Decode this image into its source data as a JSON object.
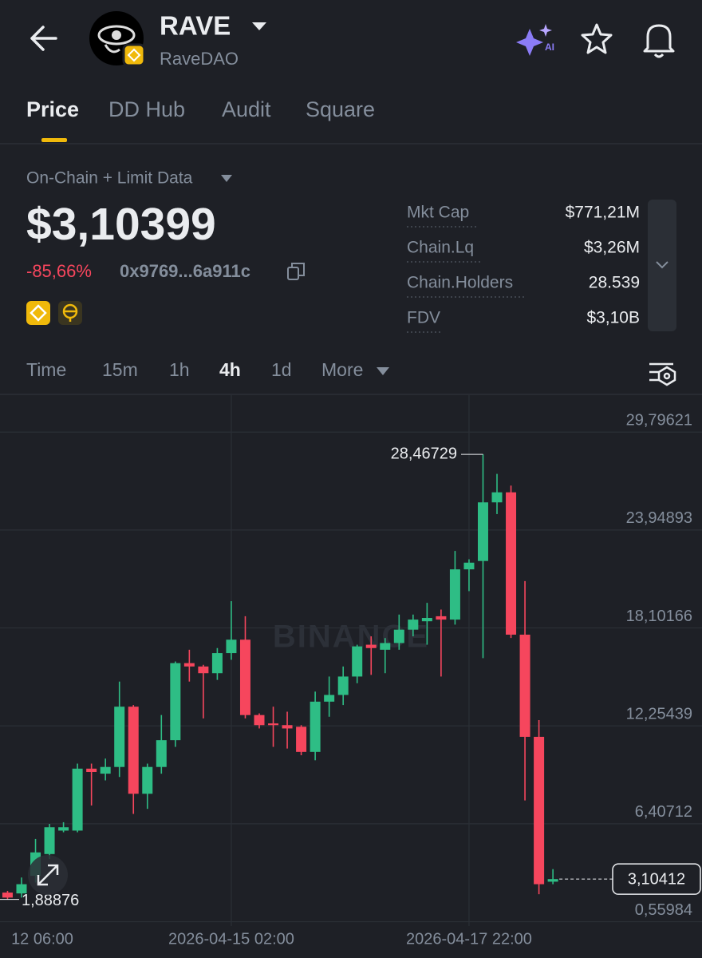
{
  "header": {
    "title": "RAVE",
    "subtitle": "RaveDAO"
  },
  "tabs": {
    "items": [
      "Price",
      "DD Hub",
      "Audit",
      "Square"
    ],
    "active": 0
  },
  "quote": {
    "source": "On-Chain + Limit Data",
    "price": "$3,10399",
    "change": "-85,66%",
    "address": "0x9769...6a911c"
  },
  "stats": [
    {
      "label": "Mkt Cap",
      "value": "$771,21M"
    },
    {
      "label": "Chain.Lq",
      "value": "$3,26M"
    },
    {
      "label": "Chain.Holders",
      "value": "28.539"
    },
    {
      "label": "FDV",
      "value": "$3,10B"
    }
  ],
  "intervals": {
    "items": [
      "Time",
      "15m",
      "1h",
      "4h",
      "1d",
      "More"
    ],
    "active": 3
  },
  "chart_data": {
    "type": "candlestick",
    "watermark": "BINANCE",
    "up_color": "#2ebd85",
    "down_color": "#f6465d",
    "open": [
      2.3,
      2.25,
      3.3,
      4.6,
      6.0,
      6.0,
      9.7,
      9.4,
      9.8,
      13.4,
      8.2,
      9.8,
      11.4,
      16.0,
      15.8,
      15.4,
      16.6,
      17.4,
      12.9,
      12.4,
      12.3,
      12.2,
      10.7,
      13.7,
      14.1,
      15.2,
      17.1,
      16.8,
      17.2,
      18.0,
      18.5,
      18.8,
      18.6,
      21.6,
      22.1,
      25.6,
      26.2,
      17.7,
      11.6,
      2.95
    ],
    "high": [
      2.4,
      3.2,
      5.5,
      6.4,
      6.5,
      10.0,
      10.0,
      10.3,
      14.9,
      13.5,
      10.0,
      12.9,
      16.1,
      16.8,
      15.9,
      16.9,
      19.7,
      18.8,
      13.0,
      13.4,
      13.1,
      12.3,
      14.3,
      15.2,
      15.8,
      17.1,
      17.6,
      17.5,
      18.9,
      18.9,
      19.6,
      19.2,
      22.7,
      22.2,
      28.46729,
      27.3,
      26.6,
      20.9,
      12.6,
      3.7
    ],
    "low": [
      1.88876,
      2.0,
      2.9,
      4.3,
      5.9,
      5.9,
      7.5,
      9.0,
      9.2,
      7.0,
      7.3,
      9.4,
      11.0,
      14.9,
      12.7,
      15.0,
      16.2,
      12.7,
      12.1,
      11.0,
      10.9,
      10.5,
      10.2,
      12.8,
      13.5,
      14.8,
      15.3,
      15.4,
      16.8,
      17.6,
      17.1,
      15.2,
      18.3,
      20.3,
      16.3,
      24.9,
      17.5,
      7.8,
      2.2,
      2.8
    ],
    "close": [
      2.0,
      2.8,
      4.7,
      6.2,
      6.2,
      9.7,
      9.5,
      9.8,
      13.4,
      8.2,
      9.8,
      11.4,
      16.0,
      15.8,
      15.4,
      16.6,
      17.4,
      12.9,
      12.3,
      12.3,
      12.1,
      10.7,
      13.7,
      14.1,
      15.2,
      17.0,
      16.9,
      17.2,
      18.0,
      18.6,
      18.7,
      18.6,
      21.6,
      22.0,
      25.6,
      26.2,
      17.7,
      11.6,
      2.8,
      3.104
    ],
    "xlim": [
      -0.54,
      49.66
    ],
    "xticks": [
      {
        "value": -1,
        "label": "12 06:00"
      },
      {
        "value": 16,
        "label": "2026-04-15 02:00"
      },
      {
        "value": 33,
        "label": "2026-04-17 22:00"
      }
    ],
    "ylim": [
      0.3,
      32.0
    ],
    "yticks": [
      {
        "value": 0.55984,
        "label": "0,55984"
      },
      {
        "value": 6.40712,
        "label": "6,40712"
      },
      {
        "value": 12.25439,
        "label": "12,25439"
      },
      {
        "value": 18.10166,
        "label": "18,10166"
      },
      {
        "value": 23.94893,
        "label": "23,94893"
      },
      {
        "value": 29.79621,
        "label": "29,79621"
      }
    ],
    "high_marker": {
      "value": 28.46729,
      "label": "28,46729"
    },
    "low_marker": {
      "value": 1.88876,
      "label": "1,88876"
    },
    "last_price": {
      "value": 3.10412,
      "label": "3,10412"
    },
    "grid": true
  }
}
